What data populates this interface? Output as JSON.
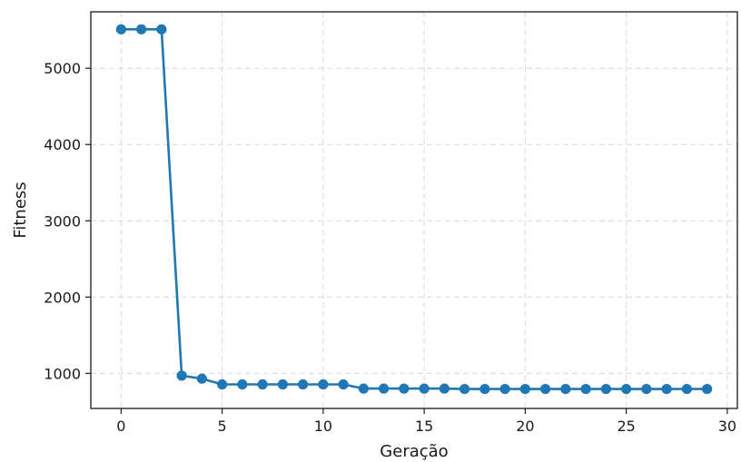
{
  "chart_data": {
    "type": "line",
    "xlabel": "Geração",
    "ylabel": "Fitness",
    "xlim": [
      -1.5,
      30.5
    ],
    "ylim": [
      540,
      5740
    ],
    "xticks": [
      0,
      5,
      10,
      15,
      20,
      25,
      30
    ],
    "yticks": [
      1000,
      2000,
      3000,
      4000,
      5000
    ],
    "grid": true,
    "series": [
      {
        "color": "#1f77b4",
        "x": [
          0,
          1,
          2,
          3,
          4,
          5,
          6,
          7,
          8,
          9,
          10,
          11,
          12,
          13,
          14,
          15,
          16,
          17,
          18,
          19,
          20,
          21,
          22,
          23,
          24,
          25,
          26,
          27,
          28,
          29
        ],
        "y": [
          5510,
          5510,
          5510,
          970,
          930,
          855,
          855,
          855,
          855,
          855,
          855,
          855,
          800,
          800,
          800,
          800,
          800,
          795,
          795,
          795,
          795,
          795,
          795,
          795,
          795,
          795,
          795,
          795,
          795,
          795
        ]
      }
    ]
  }
}
